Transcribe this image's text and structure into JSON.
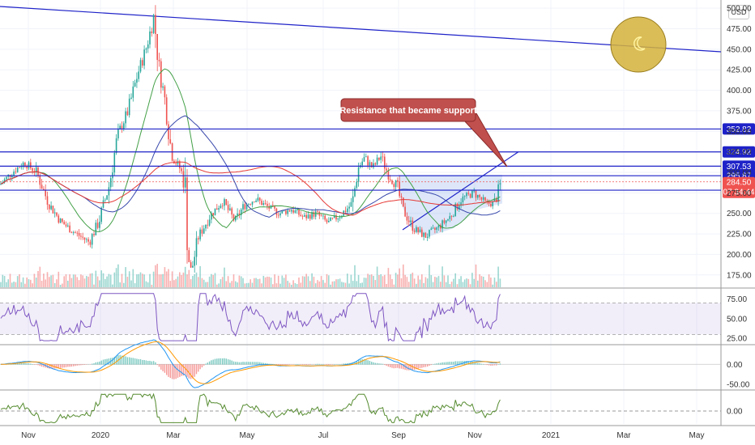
{
  "currency_label": "USD",
  "chart_data": {
    "type": "candlestick",
    "annotation": "Resistance that became support",
    "x_ticks": [
      "Nov",
      "2020",
      "Mar",
      "May",
      "Jul",
      "Sep",
      "Nov",
      "2021",
      "Mar",
      "May"
    ],
    "price_axis": {
      "ticks": [
        175,
        200,
        225,
        250,
        275,
        300,
        325,
        350,
        375,
        400,
        425,
        450,
        475,
        500
      ],
      "tick_labels": [
        "175.00",
        "200.00",
        "225.00",
        "250.00",
        "275.00",
        "300.00",
        "325.00",
        "350.00",
        "375.00",
        "400.00",
        "425.00",
        "450.00",
        "475.00",
        "500.00"
      ],
      "range": [
        160,
        510
      ]
    },
    "price_levels": [
      {
        "value": 352.82,
        "label": "352.82",
        "color": "#1e22c8"
      },
      {
        "value": 324.92,
        "label": "324.92",
        "color": "#1e22c8"
      },
      {
        "value": 307.53,
        "label": "307.53",
        "color": "#1e22c8"
      },
      {
        "value": 295.87,
        "label": "295.87",
        "color": "#1e22c8"
      },
      {
        "value": 278.26,
        "label": "278.26",
        "color": "#1e22c8"
      }
    ],
    "last_price": {
      "value": 284.5,
      "label": "284.50",
      "countdown": "07:34:44",
      "color": "#ef5350"
    },
    "rsi": {
      "ticks": [
        25,
        50,
        75
      ],
      "tick_labels": [
        "25.00",
        "50.00",
        "75.00"
      ],
      "range": [
        18,
        88
      ],
      "band": [
        30,
        70
      ]
    },
    "macd": {
      "ticks": [
        0,
        -50
      ],
      "tick_labels": [
        "0.00",
        "-50.00"
      ],
      "range": [
        -60,
        45
      ]
    },
    "osc": {
      "ticks": [
        0
      ],
      "tick_labels": [
        "0.00"
      ],
      "range": [
        -20,
        30
      ]
    },
    "colors": {
      "up": "#26a69a",
      "down": "#ef5350",
      "trendline": "#1e22c8",
      "callout": "#c0504d"
    }
  }
}
